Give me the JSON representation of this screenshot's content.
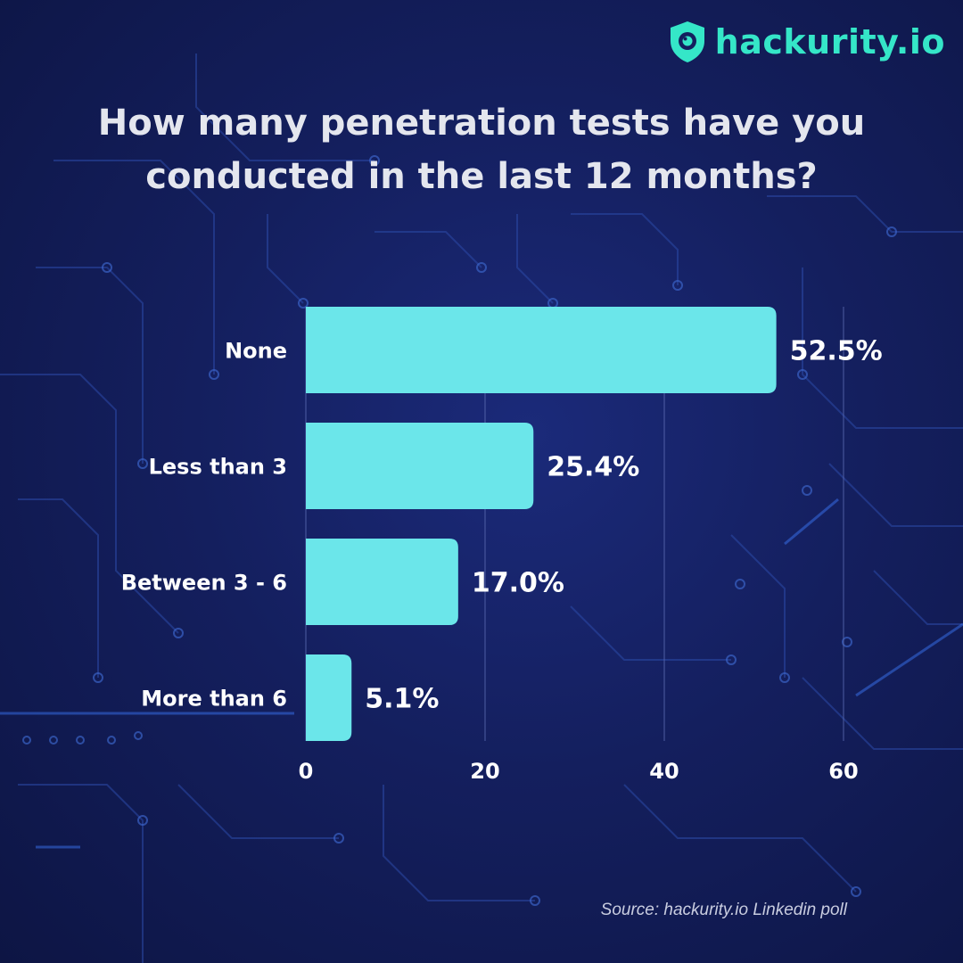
{
  "brand": {
    "name": "hackurity.io",
    "color": "#35e6c8",
    "logo_icon": "shield-eye-icon"
  },
  "title": {
    "line1": "How many penetration tests have you",
    "line2": "conducted in the last 12 months?"
  },
  "chart_data": {
    "type": "bar",
    "orientation": "horizontal",
    "title": "How many penetration tests have you conducted in the last 12 months?",
    "categories": [
      "None",
      "Less than 3",
      "Between 3 - 6",
      "More than 6"
    ],
    "values": [
      52.5,
      25.4,
      17.0,
      5.1
    ],
    "value_labels": [
      "52.5%",
      "25.4%",
      "17.0%",
      "5.1%"
    ],
    "xlim": [
      0,
      60
    ],
    "xticks": [
      0,
      20,
      40,
      60
    ],
    "xlabel": "",
    "ylabel": "",
    "grid": true,
    "bar_color": "#6be6ea"
  },
  "source": "Source: hackurity.io Linkedin poll"
}
